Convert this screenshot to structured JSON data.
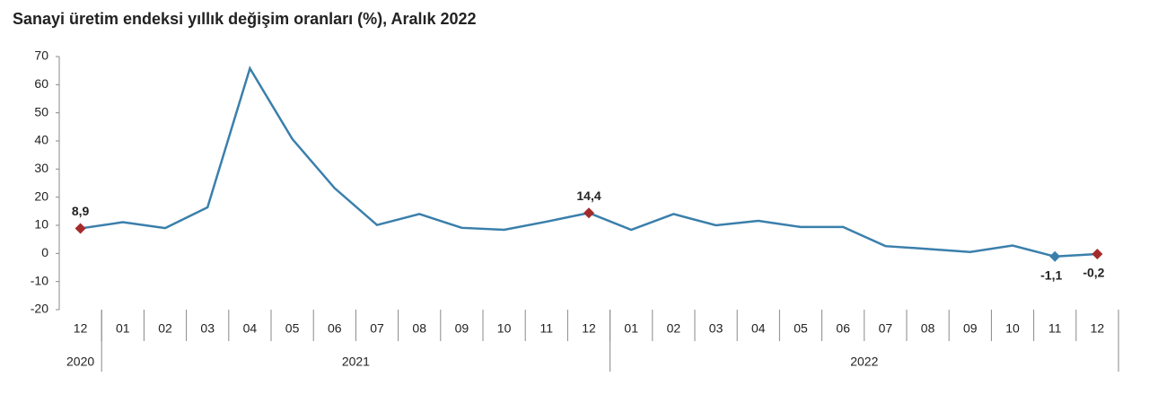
{
  "chart_data": {
    "type": "line",
    "title": "Sanayi üretim endeksi yıllık değişim oranları (%), Aralık 2022",
    "categories": [
      "12",
      "01",
      "02",
      "03",
      "04",
      "05",
      "06",
      "07",
      "08",
      "09",
      "10",
      "11",
      "12",
      "01",
      "02",
      "03",
      "04",
      "05",
      "06",
      "07",
      "08",
      "09",
      "10",
      "11",
      "12"
    ],
    "groups": [
      {
        "name": "2020",
        "count": 1
      },
      {
        "name": "2021",
        "count": 12
      },
      {
        "name": "2022",
        "count": 12
      }
    ],
    "series": [
      {
        "color": "#3a7fab",
        "values": [
          8.9,
          11.1,
          9.0,
          16.4,
          65.8,
          40.7,
          23.2,
          10.1,
          14.0,
          9.1,
          8.4,
          11.3,
          14.4,
          8.4,
          14.0,
          10.0,
          11.6,
          9.4,
          9.4,
          2.6,
          1.6,
          0.5,
          2.8,
          -1.1,
          -0.2
        ],
        "value_labels": [
          "8,9",
          null,
          null,
          null,
          null,
          null,
          null,
          null,
          null,
          null,
          null,
          null,
          "14,4",
          null,
          null,
          null,
          null,
          null,
          null,
          null,
          null,
          null,
          null,
          "-1,1",
          "-0,2"
        ],
        "marker_colors": [
          "#a52a2a",
          null,
          null,
          null,
          null,
          null,
          null,
          null,
          null,
          null,
          null,
          null,
          "#a52a2a",
          null,
          null,
          null,
          null,
          null,
          null,
          null,
          null,
          null,
          null,
          "#3a7fab",
          "#a52a2a"
        ]
      }
    ],
    "ylim": [
      -20,
      70
    ],
    "yticks": [
      -20,
      -10,
      0,
      10,
      20,
      30,
      40,
      50,
      60,
      70
    ],
    "grid": false
  }
}
